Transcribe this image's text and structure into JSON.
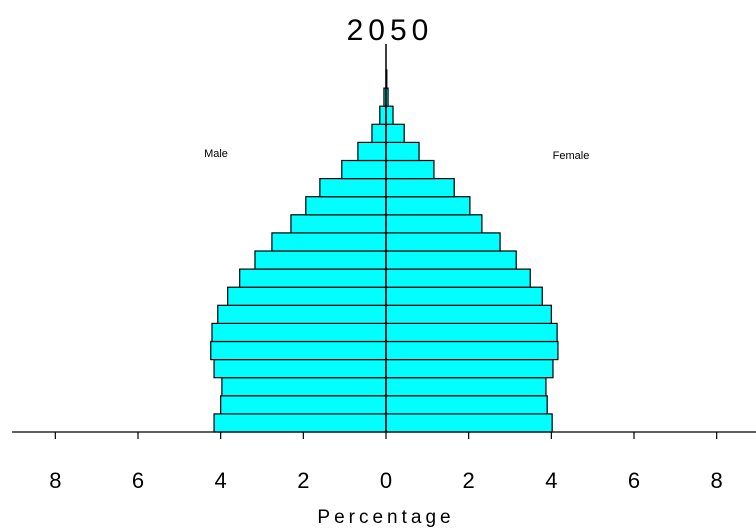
{
  "chart_data": {
    "type": "pyramid",
    "title": "2050",
    "x_label": "Percentage",
    "categories": [
      null,
      null,
      null,
      null,
      null,
      null,
      null,
      null,
      null,
      null,
      null,
      null,
      null,
      null,
      null,
      null,
      null,
      null,
      null,
      null
    ],
    "series": [
      {
        "name": "Male",
        "color": "#00ffff",
        "values": [
          4.16,
          4.0,
          3.97,
          4.16,
          4.24,
          4.21,
          4.07,
          3.83,
          3.54,
          3.17,
          2.76,
          2.3,
          1.94,
          1.6,
          1.07,
          0.68,
          0.34,
          0.15,
          0.05,
          0.0
        ]
      },
      {
        "name": "Female",
        "color": "#00ffff",
        "values": [
          4.02,
          3.9,
          3.87,
          4.04,
          4.16,
          4.14,
          4.0,
          3.78,
          3.49,
          3.15,
          2.76,
          2.32,
          2.03,
          1.65,
          1.16,
          0.8,
          0.44,
          0.17,
          0.05,
          0.02
        ]
      }
    ],
    "xlim": [
      -9,
      9
    ],
    "xticks": [
      {
        "value": -8,
        "label": "8"
      },
      {
        "value": -6,
        "label": "6"
      },
      {
        "value": -4,
        "label": "4"
      },
      {
        "value": -2,
        "label": "2"
      },
      0,
      2,
      4,
      6,
      8
    ]
  }
}
